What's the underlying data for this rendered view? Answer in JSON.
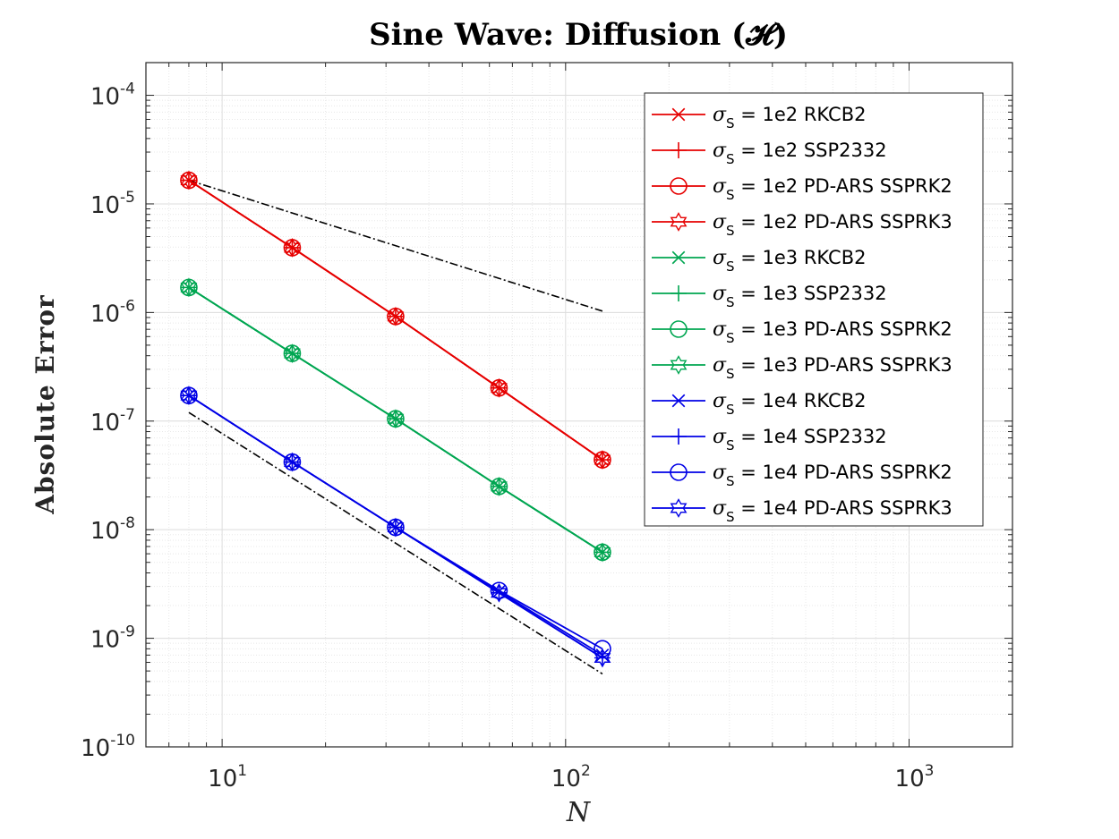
{
  "chart_data": {
    "type": "line",
    "title": "Sine Wave: Diffusion (𝓗)",
    "xlabel": "N",
    "ylabel": "Absolute Error",
    "xscale": "log",
    "yscale": "log",
    "xlim": [
      6,
      2000
    ],
    "ylim": [
      1e-10,
      0.0002
    ],
    "grid": true,
    "minor_grid": true,
    "legend_placement": "top-right",
    "x_ticks": [
      {
        "value": 10,
        "base": "10",
        "exp": "1"
      },
      {
        "value": 100,
        "base": "10",
        "exp": "2"
      },
      {
        "value": 1000,
        "base": "10",
        "exp": "3"
      }
    ],
    "y_ticks": [
      {
        "value": 0.0001,
        "base": "10",
        "exp": "-4"
      },
      {
        "value": 1e-05,
        "base": "10",
        "exp": "-5"
      },
      {
        "value": 1e-06,
        "base": "10",
        "exp": "-6"
      },
      {
        "value": 1e-07,
        "base": "10",
        "exp": "-7"
      },
      {
        "value": 1e-08,
        "base": "10",
        "exp": "-8"
      },
      {
        "value": 1e-09,
        "base": "10",
        "exp": "-9"
      },
      {
        "value": 1e-10,
        "base": "10",
        "exp": "-10"
      }
    ],
    "series": [
      {
        "sigma": "σ",
        "sub": "S",
        "label": " = 1e2  RKCB2",
        "color": "#e60000",
        "marker": "x",
        "x": [
          8,
          16,
          32,
          64,
          128
        ],
        "y": [
          1.65e-05,
          3.95e-06,
          9.2e-07,
          2.02e-07,
          4.4e-08
        ]
      },
      {
        "sigma": "σ",
        "sub": "S",
        "label": " = 1e2  SSP2332",
        "color": "#e60000",
        "marker": "plus",
        "x": [
          8,
          16,
          32,
          64,
          128
        ],
        "y": [
          1.65e-05,
          3.95e-06,
          9.2e-07,
          2.02e-07,
          4.4e-08
        ]
      },
      {
        "sigma": "σ",
        "sub": "S",
        "label": " = 1e2  PD-ARS SSPRK2",
        "color": "#e60000",
        "marker": "circle",
        "x": [
          8,
          16,
          32,
          64,
          128
        ],
        "y": [
          1.65e-05,
          3.95e-06,
          9.2e-07,
          2.02e-07,
          4.4e-08
        ]
      },
      {
        "sigma": "σ",
        "sub": "S",
        "label": " = 1e2  PD-ARS SSPRK3",
        "color": "#e60000",
        "marker": "hexagram",
        "x": [
          8,
          16,
          32,
          64,
          128
        ],
        "y": [
          1.65e-05,
          3.95e-06,
          9.2e-07,
          2.02e-07,
          4.4e-08
        ]
      },
      {
        "sigma": "σ",
        "sub": "S",
        "label": " = 1e3  RKCB2",
        "color": "#00a651",
        "marker": "x",
        "x": [
          8,
          16,
          32,
          64,
          128
        ],
        "y": [
          1.7e-06,
          4.2e-07,
          1.05e-07,
          2.5e-08,
          6.2e-09
        ]
      },
      {
        "sigma": "σ",
        "sub": "S",
        "label": " = 1e3  SSP2332",
        "color": "#00a651",
        "marker": "plus",
        "x": [
          8,
          16,
          32,
          64,
          128
        ],
        "y": [
          1.7e-06,
          4.2e-07,
          1.05e-07,
          2.5e-08,
          6.2e-09
        ]
      },
      {
        "sigma": "σ",
        "sub": "S",
        "label": " = 1e3  PD-ARS SSPRK2",
        "color": "#00a651",
        "marker": "circle",
        "x": [
          8,
          16,
          32,
          64,
          128
        ],
        "y": [
          1.7e-06,
          4.2e-07,
          1.05e-07,
          2.5e-08,
          6.2e-09
        ]
      },
      {
        "sigma": "σ",
        "sub": "S",
        "label": " = 1e3  PD-ARS SSPRK3",
        "color": "#00a651",
        "marker": "hexagram",
        "x": [
          8,
          16,
          32,
          64,
          128
        ],
        "y": [
          1.7e-06,
          4.2e-07,
          1.05e-07,
          2.5e-08,
          6.2e-09
        ]
      },
      {
        "sigma": "σ",
        "sub": "S",
        "label": " = 1e4  RKCB2",
        "color": "#0000e6",
        "marker": "x",
        "x": [
          8,
          16,
          32,
          64,
          128
        ],
        "y": [
          1.72e-07,
          4.2e-08,
          1.05e-08,
          2.7e-09,
          7e-10
        ]
      },
      {
        "sigma": "σ",
        "sub": "S",
        "label": " = 1e4  SSP2332",
        "color": "#0000e6",
        "marker": "plus",
        "x": [
          8,
          16,
          32,
          64,
          128
        ],
        "y": [
          1.72e-07,
          4.2e-08,
          1.05e-08,
          2.62e-09,
          6.6e-10
        ]
      },
      {
        "sigma": "σ",
        "sub": "S",
        "label": " = 1e4  PD-ARS SSPRK2",
        "color": "#0000e6",
        "marker": "circle",
        "x": [
          8,
          16,
          32,
          64,
          128
        ],
        "y": [
          1.72e-07,
          4.2e-08,
          1.05e-08,
          2.75e-09,
          8e-10
        ]
      },
      {
        "sigma": "σ",
        "sub": "S",
        "label": " = 1e4  PD-ARS SSPRK3",
        "color": "#0000e6",
        "marker": "hexagram",
        "x": [
          8,
          16,
          32,
          64,
          128
        ],
        "y": [
          1.72e-07,
          4.2e-08,
          1.05e-08,
          2.62e-09,
          6.6e-10
        ]
      }
    ],
    "reference_lines": [
      {
        "color": "#000000",
        "style": "dashdot",
        "x": [
          8,
          128
        ],
        "y": [
          1.65e-05,
          1.03e-06
        ]
      },
      {
        "color": "#000000",
        "style": "dashdot",
        "x": [
          8,
          128
        ],
        "y": [
          1.2e-07,
          4.7e-10
        ]
      }
    ]
  }
}
